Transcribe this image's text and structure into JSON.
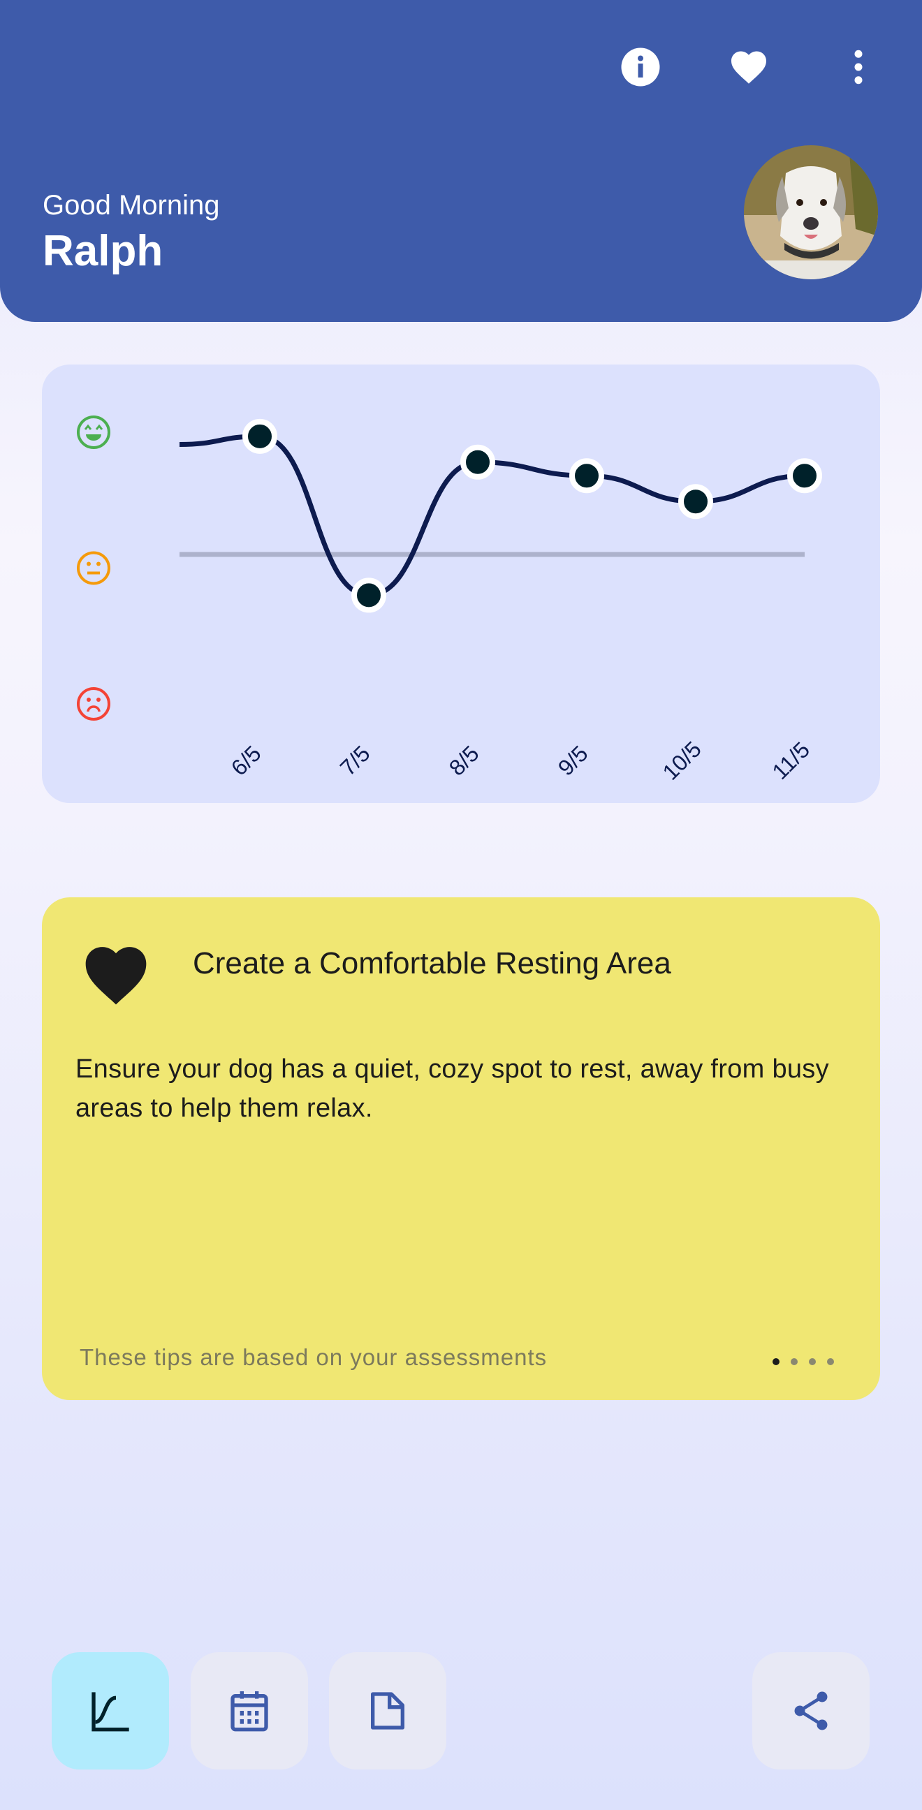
{
  "header": {
    "greeting": "Good Morning",
    "name": "Ralph",
    "icons": [
      "info-icon",
      "heart-icon",
      "more-vertical-icon"
    ],
    "color": "#3e5baa"
  },
  "chart_data": {
    "type": "line",
    "categories": [
      "6/5",
      "7/5",
      "8/5",
      "9/5",
      "10/5",
      "11/5"
    ],
    "values": [
      2.97,
      1.8,
      2.78,
      2.68,
      2.49,
      2.68
    ],
    "leading_value": 2.91,
    "reference_line": 2.1,
    "ylim": [
      1,
      3
    ],
    "y_tick_icons": [
      {
        "value": 3,
        "icon": "happy-face-icon",
        "color": "#4caf50"
      },
      {
        "value": 2,
        "icon": "neutral-face-icon",
        "color": "#f59a0b"
      },
      {
        "value": 1,
        "icon": "sad-face-icon",
        "color": "#f44336"
      }
    ],
    "grid": false,
    "line_color": "#0d1b4f",
    "point_color": "#00212a"
  },
  "tip": {
    "icon": "heart-icon",
    "title": "Create a Comfortable Resting Area",
    "body": "Ensure your dog has a quiet, cozy spot to rest, away from busy areas to help them relax.",
    "footer": "These tips are based on your assessments",
    "page_count": 4,
    "active_page": 1,
    "color": "#f0e773"
  },
  "bottom_nav": {
    "items": [
      "chart-icon",
      "calendar-icon",
      "document-icon",
      "share-icon"
    ],
    "active": "chart-icon",
    "active_color": "#b1ebfd"
  }
}
